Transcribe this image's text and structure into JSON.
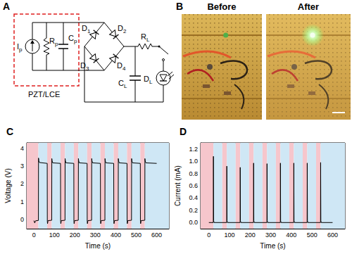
{
  "diagram": {
    "title": "A",
    "box_label": "PZT/LCE",
    "components": [
      {
        "kind": "current_source",
        "main": "I",
        "sub": "p"
      },
      {
        "kind": "resistor",
        "main": "R",
        "sub": "p"
      },
      {
        "kind": "capacitor",
        "main": "C",
        "sub": "p"
      },
      {
        "kind": "diode",
        "main": "D",
        "sub": "1"
      },
      {
        "kind": "diode",
        "main": "D",
        "sub": "2"
      },
      {
        "kind": "diode",
        "main": "D",
        "sub": "3"
      },
      {
        "kind": "diode",
        "main": "D",
        "sub": "4"
      },
      {
        "kind": "resistor",
        "main": "R",
        "sub": "L"
      },
      {
        "kind": "capacitor",
        "main": "C",
        "sub": "L"
      },
      {
        "kind": "led",
        "main": "D",
        "sub": "L"
      }
    ]
  },
  "photos": {
    "title": "B",
    "panels": [
      {
        "label": "Before",
        "led_on": false
      },
      {
        "label": "After",
        "led_on": true
      }
    ]
  },
  "chart_data": [
    {
      "type": "line",
      "title": "C",
      "xlabel": "Time (s)",
      "ylabel": "Voltage (V)",
      "color": "#000000",
      "grid": false,
      "xlim": [
        -35,
        660
      ],
      "xticks": [
        0,
        100,
        200,
        300,
        400,
        500,
        600
      ],
      "ylim": [
        -0.5,
        4.3
      ],
      "yticks": [
        0,
        1,
        2,
        3,
        4
      ],
      "x": [
        0,
        4,
        8,
        22,
        22.5,
        24,
        27,
        65,
        65.5,
        66.5,
        69,
        87,
        87.5,
        89,
        92,
        130,
        130.5,
        131.5,
        134,
        152,
        152.5,
        154,
        157,
        195,
        195.5,
        196.5,
        199,
        217,
        217.5,
        219,
        222,
        260,
        260.5,
        261.5,
        264,
        282,
        282.5,
        284,
        287,
        325,
        325.5,
        326.5,
        329,
        347,
        347.5,
        349,
        352,
        390,
        390.5,
        391.5,
        394,
        412,
        412.5,
        414,
        417,
        455,
        455.5,
        456.5,
        459,
        477,
        477.5,
        479,
        482,
        520,
        520.5,
        521.5,
        524,
        542,
        542.5,
        544,
        547,
        600
      ],
      "values": [
        -0.05,
        -0.18,
        -0.06,
        -0.04,
        3.45,
        3.3,
        3.2,
        3.15,
        -0.08,
        -0.22,
        -0.05,
        -0.03,
        3.42,
        3.28,
        3.18,
        3.15,
        -0.08,
        -0.22,
        -0.05,
        -0.03,
        3.42,
        3.28,
        3.18,
        3.15,
        -0.08,
        -0.22,
        -0.05,
        -0.03,
        3.42,
        3.28,
        3.18,
        3.15,
        -0.08,
        -0.22,
        -0.05,
        -0.03,
        3.42,
        3.28,
        3.18,
        3.15,
        -0.08,
        -0.22,
        -0.05,
        -0.03,
        3.42,
        3.28,
        3.18,
        3.15,
        -0.08,
        -0.22,
        -0.05,
        -0.03,
        3.42,
        3.28,
        3.18,
        3.15,
        -0.08,
        -0.22,
        -0.05,
        -0.03,
        3.42,
        3.28,
        3.18,
        3.15,
        -0.08,
        -0.22,
        -0.05,
        -0.03,
        3.42,
        3.28,
        3.18,
        3.15
      ],
      "shaded_regions": [
        {
          "from": -35,
          "to": 22,
          "color": "#f6c6cc"
        },
        {
          "from": 22,
          "to": 65,
          "color": "#cfe7f5"
        },
        {
          "from": 65,
          "to": 87,
          "color": "#f6c6cc"
        },
        {
          "from": 87,
          "to": 130,
          "color": "#cfe7f5"
        },
        {
          "from": 130,
          "to": 152,
          "color": "#f6c6cc"
        },
        {
          "from": 152,
          "to": 195,
          "color": "#cfe7f5"
        },
        {
          "from": 195,
          "to": 217,
          "color": "#f6c6cc"
        },
        {
          "from": 217,
          "to": 260,
          "color": "#cfe7f5"
        },
        {
          "from": 260,
          "to": 282,
          "color": "#f6c6cc"
        },
        {
          "from": 282,
          "to": 325,
          "color": "#cfe7f5"
        },
        {
          "from": 325,
          "to": 347,
          "color": "#f6c6cc"
        },
        {
          "from": 347,
          "to": 390,
          "color": "#cfe7f5"
        },
        {
          "from": 390,
          "to": 412,
          "color": "#f6c6cc"
        },
        {
          "from": 412,
          "to": 455,
          "color": "#cfe7f5"
        },
        {
          "from": 455,
          "to": 477,
          "color": "#f6c6cc"
        },
        {
          "from": 477,
          "to": 520,
          "color": "#cfe7f5"
        },
        {
          "from": 520,
          "to": 542,
          "color": "#f6c6cc"
        },
        {
          "from": 542,
          "to": 660,
          "color": "#cfe7f5"
        }
      ]
    },
    {
      "type": "line",
      "title": "D",
      "xlabel": "Time (s)",
      "ylabel": "Current (mA)",
      "color": "#000000",
      "grid": false,
      "xlim": [
        -40,
        660
      ],
      "xticks": [
        0,
        100,
        200,
        300,
        400,
        500,
        600
      ],
      "ylim": [
        -0.1,
        1.3
      ],
      "yticks": [
        {
          "value": 0,
          "label": "0.0"
        },
        {
          "value": 0.2,
          "label": "0.2"
        },
        {
          "value": 0.4,
          "label": "0.4"
        },
        {
          "value": 0.6,
          "label": "0.6"
        },
        {
          "value": 0.8,
          "label": "0.8"
        },
        {
          "value": 1,
          "label": "1.0"
        },
        {
          "value": 1.2,
          "label": "1.2"
        }
      ],
      "x": [
        0,
        21.5,
        22,
        23,
        25,
        86.5,
        87,
        88,
        90,
        151.5,
        152,
        153,
        155,
        216.5,
        217,
        218,
        220,
        281.5,
        282,
        283,
        285,
        346.5,
        347,
        348,
        350,
        411.5,
        412,
        413,
        415,
        476.5,
        477,
        478,
        480,
        541.5,
        542,
        543,
        545,
        600
      ],
      "values": [
        0,
        0,
        1.08,
        0.03,
        0,
        0,
        0.92,
        0.03,
        0,
        0,
        0.9,
        0.03,
        0,
        0,
        0.97,
        0.03,
        0,
        0,
        0.96,
        0.03,
        0,
        0,
        0.97,
        0.03,
        0,
        0,
        0.97,
        0.03,
        0,
        0,
        0.97,
        0.03,
        0,
        0,
        0.98,
        0.03,
        0,
        0
      ],
      "shaded_regions": [
        {
          "from": -40,
          "to": 22,
          "color": "#f6c6cc"
        },
        {
          "from": 22,
          "to": 65,
          "color": "#cfe7f5"
        },
        {
          "from": 65,
          "to": 87,
          "color": "#f6c6cc"
        },
        {
          "from": 87,
          "to": 130,
          "color": "#cfe7f5"
        },
        {
          "from": 130,
          "to": 152,
          "color": "#f6c6cc"
        },
        {
          "from": 152,
          "to": 195,
          "color": "#cfe7f5"
        },
        {
          "from": 195,
          "to": 217,
          "color": "#f6c6cc"
        },
        {
          "from": 217,
          "to": 260,
          "color": "#cfe7f5"
        },
        {
          "from": 260,
          "to": 282,
          "color": "#f6c6cc"
        },
        {
          "from": 282,
          "to": 325,
          "color": "#cfe7f5"
        },
        {
          "from": 325,
          "to": 347,
          "color": "#f6c6cc"
        },
        {
          "from": 347,
          "to": 390,
          "color": "#cfe7f5"
        },
        {
          "from": 390,
          "to": 412,
          "color": "#f6c6cc"
        },
        {
          "from": 412,
          "to": 455,
          "color": "#cfe7f5"
        },
        {
          "from": 455,
          "to": 477,
          "color": "#f6c6cc"
        },
        {
          "from": 477,
          "to": 520,
          "color": "#cfe7f5"
        },
        {
          "from": 520,
          "to": 542,
          "color": "#f6c6cc"
        },
        {
          "from": 542,
          "to": 660,
          "color": "#cfe7f5"
        }
      ]
    }
  ]
}
